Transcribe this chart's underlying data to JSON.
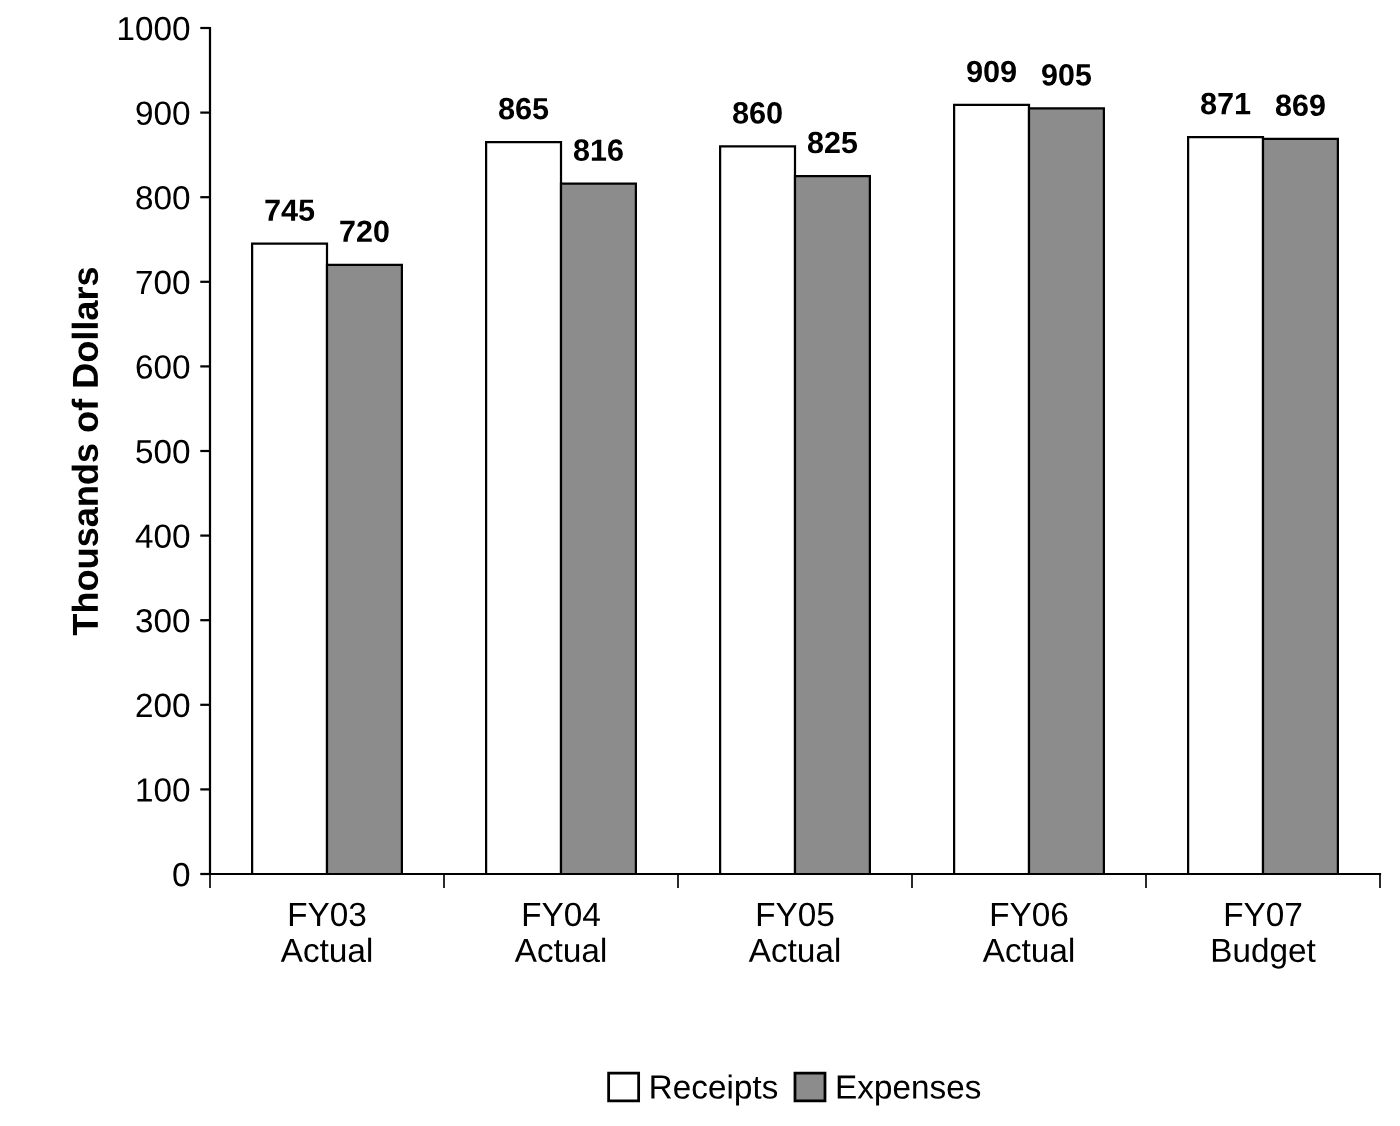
{
  "chart_data": {
    "type": "bar",
    "ylabel": "Thousands of Dollars",
    "categories": [
      "FY03\nActual",
      "FY04\nActual",
      "FY05\nActual",
      "FY06\nActual",
      "FY07\nBudget"
    ],
    "series": [
      {
        "name": "Receipts",
        "color": "#ffffff",
        "values": [
          745,
          865,
          860,
          909,
          871
        ]
      },
      {
        "name": "Expenses",
        "color": "#8c8c8c",
        "values": [
          720,
          816,
          825,
          905,
          869
        ]
      }
    ],
    "ylim": [
      0,
      1000
    ],
    "yticks": [
      0,
      100,
      200,
      300,
      400,
      500,
      600,
      700,
      800,
      900,
      1000
    ],
    "data_labels": true,
    "grid": false,
    "legend": "bottom"
  }
}
